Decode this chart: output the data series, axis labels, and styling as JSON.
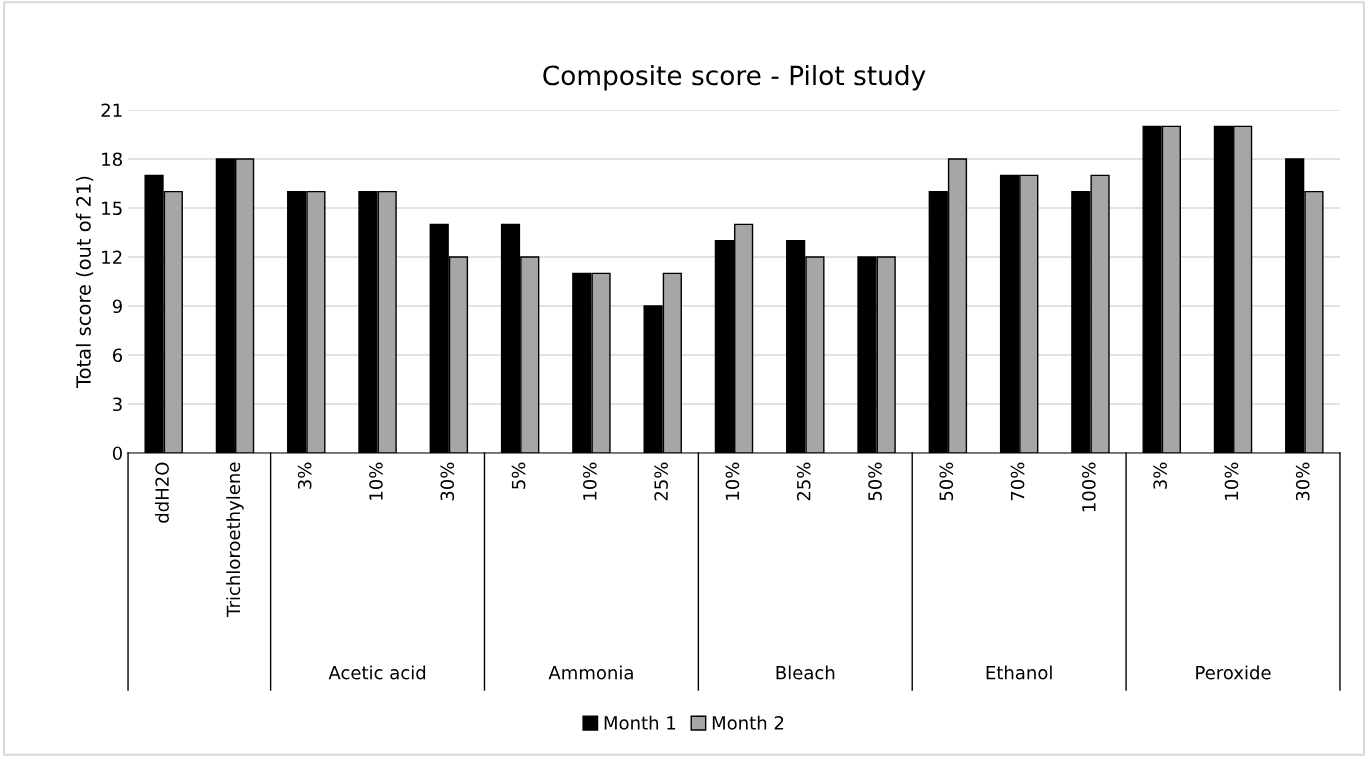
{
  "chart_data": {
    "type": "bar",
    "title": "Composite score - Pilot study",
    "ylabel": "Total score (out of 21)",
    "categories": [
      "ddH2O",
      "Trichloroethylene",
      "3%",
      "10%",
      "30%",
      "5%",
      "10%",
      "25%",
      "10%",
      "25%",
      "50%",
      "50%",
      "70%",
      "100%",
      "3%",
      "10%",
      "30%"
    ],
    "annotations": [
      "Acetic acid",
      "Ammonia",
      "Bleach",
      "Ethanol",
      "Peroxide"
    ],
    "series": [
      {
        "name": "Month 1",
        "color": "#000000",
        "values": [
          17,
          18,
          16,
          16,
          14,
          14,
          11,
          9,
          13,
          13,
          12,
          16,
          17,
          16,
          20,
          20,
          18
        ]
      },
      {
        "name": "Month 2",
        "color": "#a6a6a6",
        "values": [
          16,
          18,
          16,
          16,
          12,
          12,
          11,
          11,
          14,
          12,
          12,
          18,
          17,
          17,
          20,
          20,
          16
        ]
      }
    ],
    "ylim": [
      0,
      21
    ],
    "yticks": [
      0,
      3,
      6,
      9,
      12,
      15,
      18,
      21
    ],
    "grid": "y",
    "legend": "bottom"
  }
}
